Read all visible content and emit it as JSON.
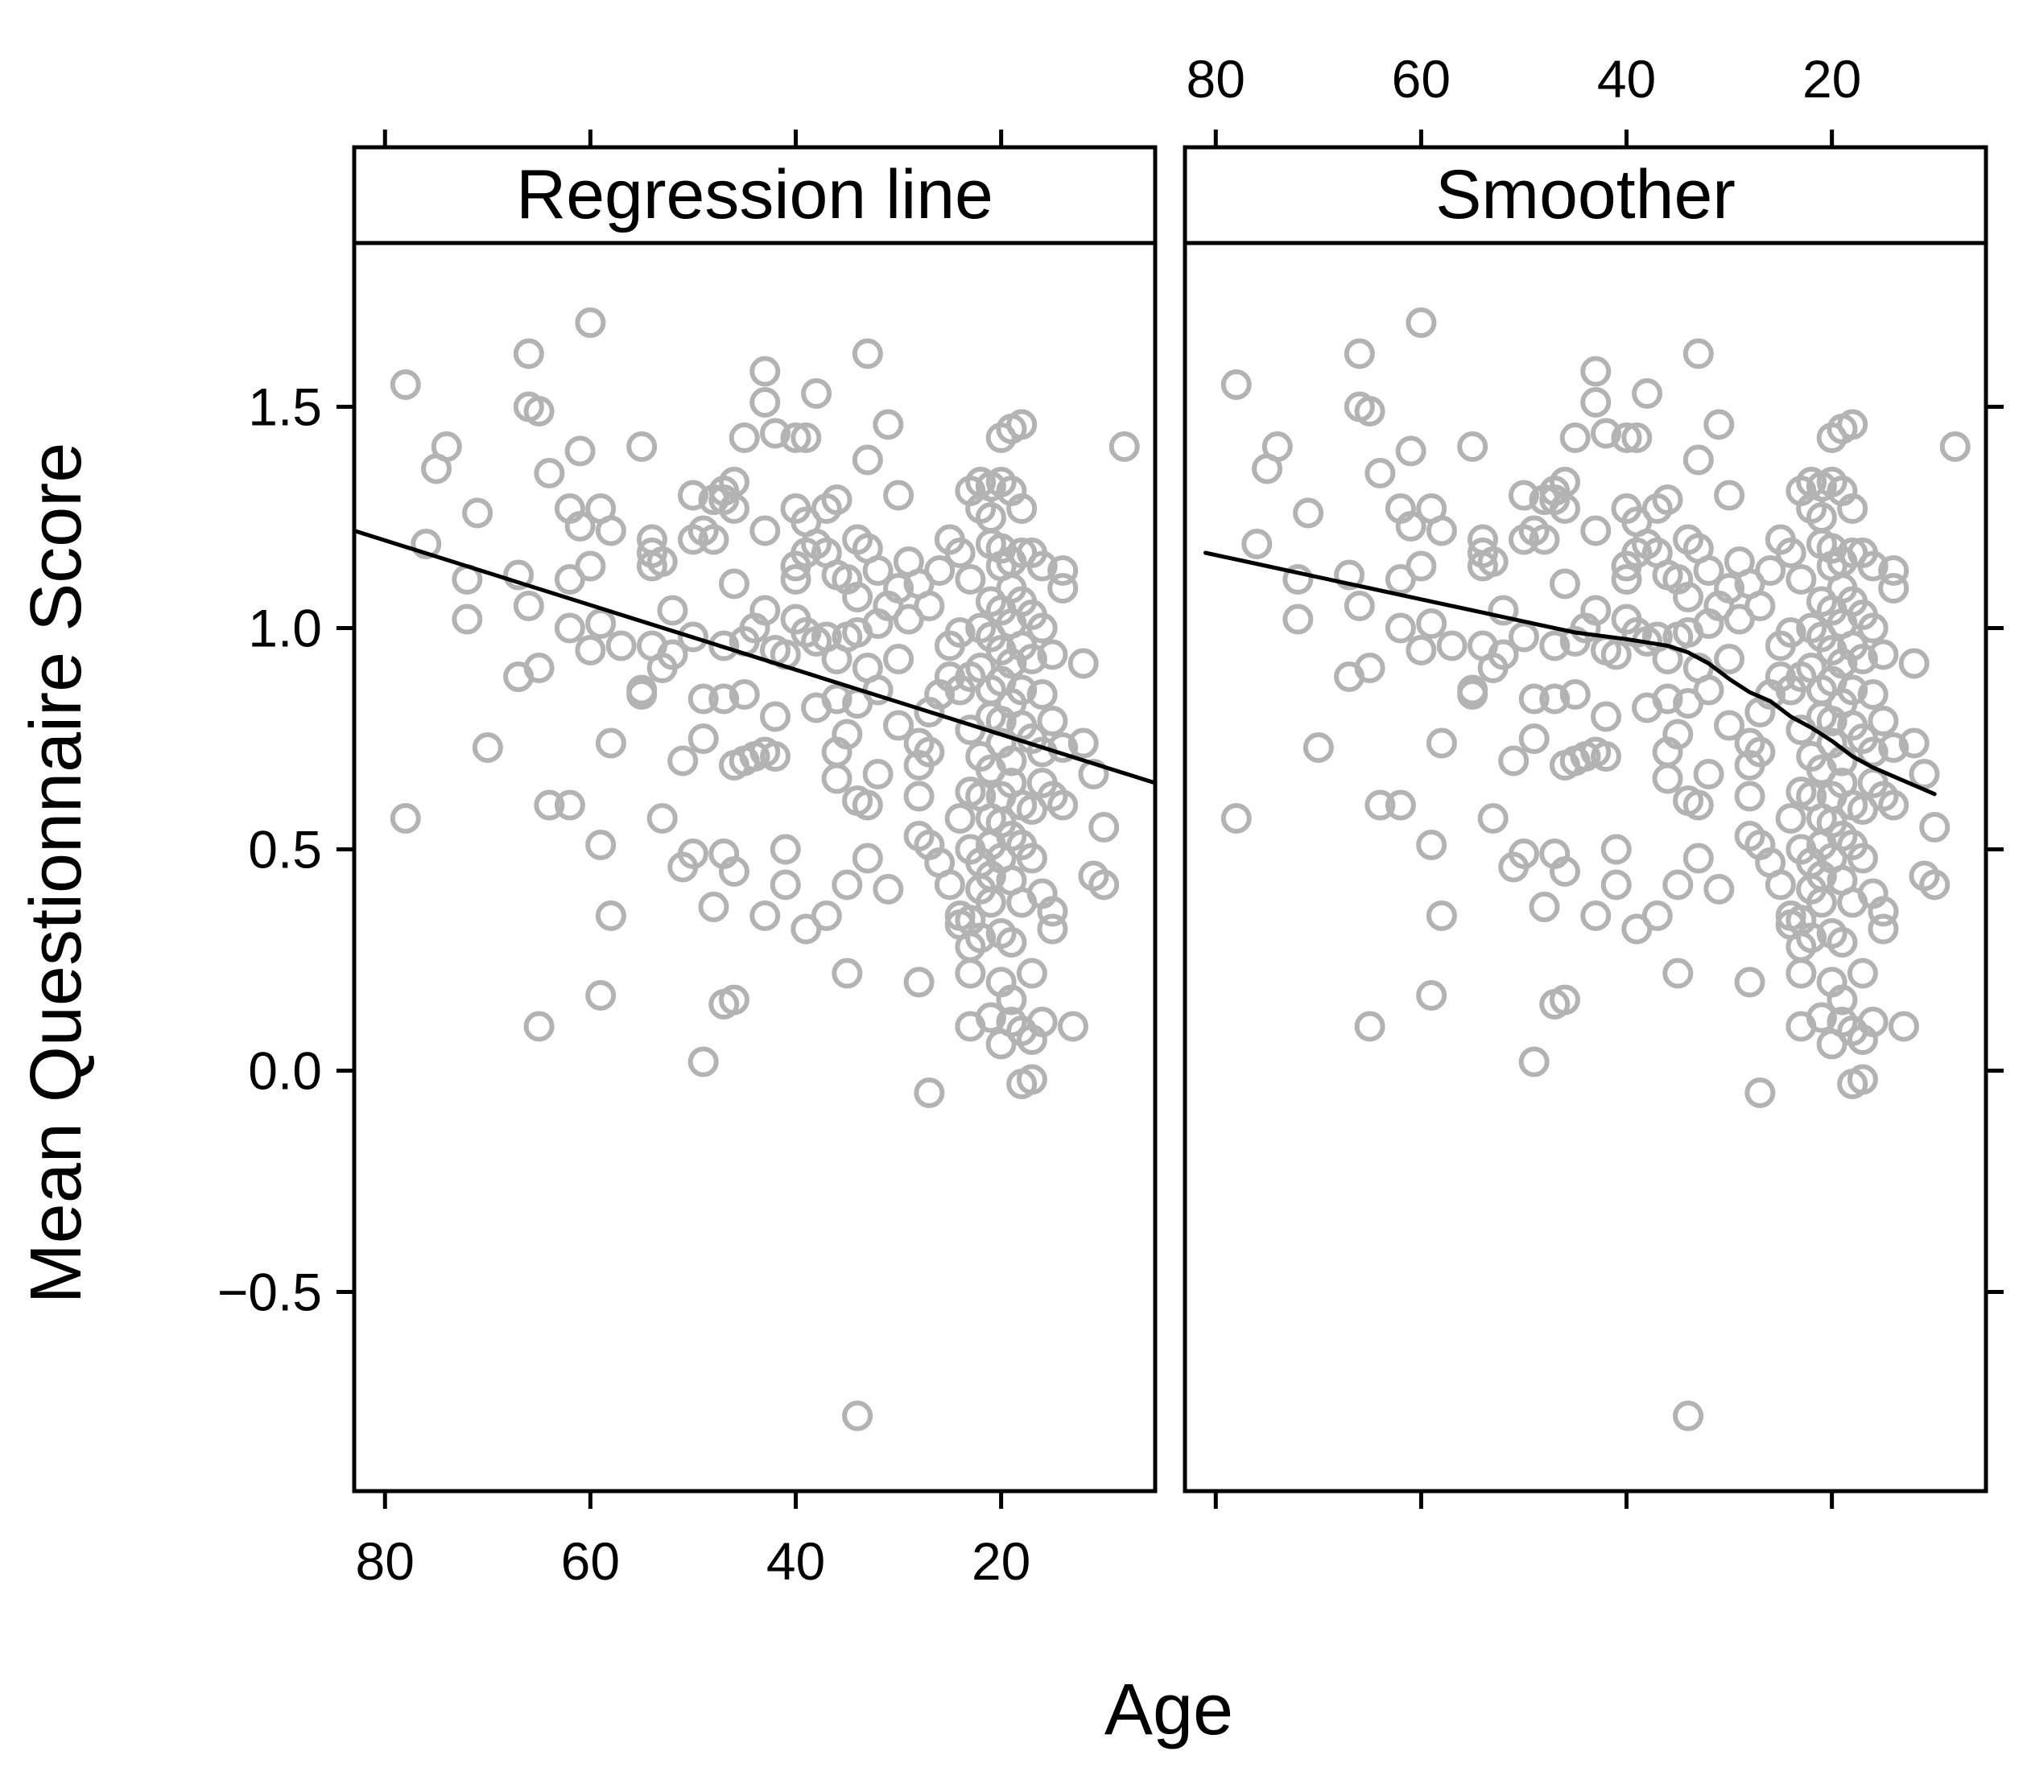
{
  "chart_data": {
    "type": "scatter",
    "xlabel": "Age",
    "ylabel": "Mean Questionnaire Score",
    "xlim": [
      83,
      5
    ],
    "ylim": [
      -0.95,
      1.87
    ],
    "x_ticks": [
      80,
      60,
      40,
      20
    ],
    "y_ticks": [
      -0.5,
      0.0,
      0.5,
      1.0,
      1.5
    ],
    "y_tick_labels": [
      "−0.5",
      "0.0",
      "0.5",
      "1.0",
      "1.5"
    ],
    "x_reversed": true,
    "grid": false,
    "colors": {
      "points": "#b3b3b3",
      "line": "#000000",
      "strip_background": "#ffffff"
    },
    "panels": [
      {
        "strip_label": "Regression line",
        "line_type": "regression",
        "line": {
          "x": [
            83,
            5
          ],
          "y": [
            1.22,
            0.65
          ]
        }
      },
      {
        "strip_label": "Smoother",
        "line_type": "smoother",
        "line": {
          "x": [
            81,
            75,
            70,
            65,
            60,
            55,
            50,
            45,
            40,
            36,
            34,
            32,
            30,
            28,
            26,
            24,
            22,
            20,
            18,
            16,
            14,
            12,
            10
          ],
          "y": [
            1.17,
            1.14,
            1.115,
            1.09,
            1.065,
            1.04,
            1.015,
            0.99,
            0.975,
            0.96,
            0.945,
            0.92,
            0.885,
            0.855,
            0.835,
            0.8,
            0.775,
            0.745,
            0.71,
            0.685,
            0.665,
            0.645,
            0.625
          ]
        }
      }
    ],
    "points": [
      [
        78,
        1.55
      ],
      [
        78,
        0.57
      ],
      [
        76,
        1.19
      ],
      [
        75,
        1.36
      ],
      [
        74,
        1.41
      ],
      [
        72,
        1.11
      ],
      [
        72,
        1.02
      ],
      [
        71,
        1.26
      ],
      [
        70,
        0.73
      ],
      [
        67,
        1.12
      ],
      [
        67,
        0.89
      ],
      [
        66,
        1.05
      ],
      [
        66,
        1.62
      ],
      [
        66,
        1.5
      ],
      [
        65,
        1.49
      ],
      [
        65,
        0.91
      ],
      [
        65,
        0.1
      ],
      [
        64,
        1.35
      ],
      [
        64,
        0.6
      ],
      [
        62,
        0.6
      ],
      [
        62,
        1.11
      ],
      [
        62,
        1.27
      ],
      [
        62,
        1.0
      ],
      [
        61,
        1.23
      ],
      [
        61,
        1.4
      ],
      [
        60,
        1.69
      ],
      [
        60,
        1.14
      ],
      [
        60,
        0.95
      ],
      [
        59,
        1.27
      ],
      [
        59,
        1.01
      ],
      [
        59,
        0.51
      ],
      [
        59,
        0.17
      ],
      [
        58,
        1.22
      ],
      [
        58,
        0.74
      ],
      [
        58,
        0.35
      ],
      [
        57,
        0.96
      ],
      [
        55,
        1.41
      ],
      [
        55,
        0.86
      ],
      [
        55,
        0.85
      ],
      [
        54,
        1.2
      ],
      [
        54,
        1.17
      ],
      [
        54,
        1.14
      ],
      [
        54,
        0.96
      ],
      [
        53,
        1.15
      ],
      [
        53,
        0.91
      ],
      [
        53,
        0.57
      ],
      [
        52,
        1.04
      ],
      [
        52,
        0.94
      ],
      [
        51,
        0.7
      ],
      [
        51,
        0.46
      ],
      [
        50,
        1.3
      ],
      [
        50,
        1.2
      ],
      [
        50,
        0.98
      ],
      [
        50,
        0.49
      ],
      [
        49,
        1.22
      ],
      [
        49,
        0.84
      ],
      [
        49,
        0.75
      ],
      [
        49,
        0.02
      ],
      [
        48,
        1.29
      ],
      [
        48,
        1.2
      ],
      [
        48,
        0.37
      ],
      [
        47,
        1.31
      ],
      [
        47,
        1.29
      ],
      [
        47,
        0.96
      ],
      [
        47,
        0.84
      ],
      [
        47,
        0.49
      ],
      [
        47,
        0.15
      ],
      [
        46,
        1.33
      ],
      [
        46,
        1.27
      ],
      [
        46,
        1.1
      ],
      [
        46,
        0.69
      ],
      [
        46,
        0.45
      ],
      [
        46,
        0.16
      ],
      [
        45,
        1.43
      ],
      [
        45,
        0.97
      ],
      [
        45,
        0.85
      ],
      [
        45,
        0.7
      ],
      [
        44,
        1.0
      ],
      [
        44,
        0.71
      ],
      [
        43,
        1.58
      ],
      [
        43,
        1.51
      ],
      [
        43,
        1.22
      ],
      [
        43,
        1.04
      ],
      [
        43,
        0.72
      ],
      [
        43,
        0.35
      ],
      [
        42,
        1.44
      ],
      [
        42,
        0.95
      ],
      [
        42,
        0.8
      ],
      [
        42,
        0.71
      ],
      [
        41,
        0.94
      ],
      [
        41,
        0.5
      ],
      [
        41,
        0.42
      ],
      [
        40,
        1.43
      ],
      [
        40,
        1.27
      ],
      [
        40,
        1.14
      ],
      [
        40,
        1.11
      ],
      [
        40,
        1.02
      ],
      [
        39,
        1.43
      ],
      [
        39,
        1.24
      ],
      [
        39,
        1.17
      ],
      [
        39,
        0.99
      ],
      [
        39,
        0.32
      ],
      [
        38,
        1.53
      ],
      [
        38,
        1.19
      ],
      [
        38,
        0.97
      ],
      [
        38,
        0.82
      ],
      [
        37,
        1.27
      ],
      [
        37,
        1.17
      ],
      [
        37,
        0.98
      ],
      [
        37,
        0.35
      ],
      [
        36,
        1.29
      ],
      [
        36,
        1.12
      ],
      [
        36,
        0.93
      ],
      [
        36,
        0.84
      ],
      [
        36,
        0.72
      ],
      [
        36,
        0.66
      ],
      [
        35,
        1.11
      ],
      [
        35,
        0.98
      ],
      [
        35,
        0.76
      ],
      [
        35,
        0.42
      ],
      [
        35,
        0.22
      ],
      [
        34,
        1.2
      ],
      [
        34,
        1.07
      ],
      [
        34,
        0.99
      ],
      [
        34,
        0.83
      ],
      [
        34,
        0.61
      ],
      [
        34,
        -0.78
      ],
      [
        33,
        1.62
      ],
      [
        33,
        1.38
      ],
      [
        33,
        1.18
      ],
      [
        33,
        0.91
      ],
      [
        33,
        0.6
      ],
      [
        33,
        0.48
      ],
      [
        32,
        1.13
      ],
      [
        32,
        1.01
      ],
      [
        32,
        0.86
      ],
      [
        32,
        0.67
      ],
      [
        31,
        1.46
      ],
      [
        31,
        1.05
      ],
      [
        31,
        0.41
      ],
      [
        30,
        1.3
      ],
      [
        30,
        1.09
      ],
      [
        30,
        0.93
      ],
      [
        30,
        0.78
      ],
      [
        29,
        1.15
      ],
      [
        29,
        1.02
      ],
      [
        28,
        1.1
      ],
      [
        28,
        0.74
      ],
      [
        28,
        0.69
      ],
      [
        28,
        0.62
      ],
      [
        28,
        0.53
      ],
      [
        28,
        0.2
      ],
      [
        27,
        1.05
      ],
      [
        27,
        0.81
      ],
      [
        27,
        0.72
      ],
      [
        27,
        0.51
      ],
      [
        27,
        -0.05
      ],
      [
        26,
        1.13
      ],
      [
        26,
        0.85
      ],
      [
        26,
        0.47
      ],
      [
        25,
        1.2
      ],
      [
        25,
        0.96
      ],
      [
        25,
        0.89
      ],
      [
        25,
        0.42
      ],
      [
        24,
        1.17
      ],
      [
        24,
        0.99
      ],
      [
        24,
        0.86
      ],
      [
        24,
        0.57
      ],
      [
        24,
        0.35
      ],
      [
        24,
        0.33
      ],
      [
        23,
        1.31
      ],
      [
        23,
        1.11
      ],
      [
        23,
        0.89
      ],
      [
        23,
        0.77
      ],
      [
        23,
        0.63
      ],
      [
        23,
        0.5
      ],
      [
        23,
        0.34
      ],
      [
        23,
        0.28
      ],
      [
        23,
        0.22
      ],
      [
        23,
        0.1
      ],
      [
        22,
        1.33
      ],
      [
        22,
        1.27
      ],
      [
        22,
        1.0
      ],
      [
        22,
        0.91
      ],
      [
        22,
        0.71
      ],
      [
        22,
        0.62
      ],
      [
        22,
        0.47
      ],
      [
        22,
        0.41
      ],
      [
        22,
        0.3
      ],
      [
        21,
        1.32
      ],
      [
        21,
        1.25
      ],
      [
        21,
        1.19
      ],
      [
        21,
        1.06
      ],
      [
        21,
        0.98
      ],
      [
        21,
        0.86
      ],
      [
        21,
        0.8
      ],
      [
        21,
        0.68
      ],
      [
        21,
        0.57
      ],
      [
        21,
        0.51
      ],
      [
        21,
        0.44
      ],
      [
        21,
        0.38
      ],
      [
        21,
        0.12
      ],
      [
        20,
        1.43
      ],
      [
        20,
        1.33
      ],
      [
        20,
        1.18
      ],
      [
        20,
        1.14
      ],
      [
        20,
        1.04
      ],
      [
        20,
        0.95
      ],
      [
        20,
        0.88
      ],
      [
        20,
        0.79
      ],
      [
        20,
        0.74
      ],
      [
        20,
        0.62
      ],
      [
        20,
        0.56
      ],
      [
        20,
        0.48
      ],
      [
        20,
        0.31
      ],
      [
        20,
        0.2
      ],
      [
        20,
        0.06
      ],
      [
        19,
        1.45
      ],
      [
        19,
        1.31
      ],
      [
        19,
        1.15
      ],
      [
        19,
        1.09
      ],
      [
        19,
        1.01
      ],
      [
        19,
        0.92
      ],
      [
        19,
        0.83
      ],
      [
        19,
        0.7
      ],
      [
        19,
        0.65
      ],
      [
        19,
        0.53
      ],
      [
        19,
        0.43
      ],
      [
        19,
        0.29
      ],
      [
        19,
        0.16
      ],
      [
        19,
        0.11
      ],
      [
        18,
        1.46
      ],
      [
        18,
        1.27
      ],
      [
        18,
        1.17
      ],
      [
        18,
        1.06
      ],
      [
        18,
        0.96
      ],
      [
        18,
        0.86
      ],
      [
        18,
        0.78
      ],
      [
        18,
        0.6
      ],
      [
        18,
        0.51
      ],
      [
        18,
        0.38
      ],
      [
        18,
        0.09
      ],
      [
        18,
        -0.03
      ],
      [
        17,
        1.17
      ],
      [
        17,
        1.03
      ],
      [
        17,
        0.93
      ],
      [
        17,
        0.75
      ],
      [
        17,
        0.59
      ],
      [
        17,
        0.48
      ],
      [
        17,
        0.22
      ],
      [
        17,
        0.07
      ],
      [
        17,
        -0.02
      ],
      [
        16,
        1.14
      ],
      [
        16,
        1.0
      ],
      [
        16,
        0.85
      ],
      [
        16,
        0.72
      ],
      [
        16,
        0.65
      ],
      [
        16,
        0.4
      ],
      [
        16,
        0.11
      ],
      [
        15,
        0.94
      ],
      [
        15,
        0.79
      ],
      [
        15,
        0.62
      ],
      [
        15,
        0.36
      ],
      [
        15,
        0.32
      ],
      [
        14,
        1.13
      ],
      [
        14,
        1.09
      ],
      [
        14,
        0.73
      ],
      [
        14,
        0.6
      ],
      [
        13,
        0.1
      ],
      [
        12,
        0.92
      ],
      [
        12,
        0.74
      ],
      [
        11,
        0.67
      ],
      [
        11,
        0.44
      ],
      [
        10,
        0.55
      ],
      [
        10,
        0.42
      ],
      [
        8,
        1.41
      ]
    ]
  }
}
